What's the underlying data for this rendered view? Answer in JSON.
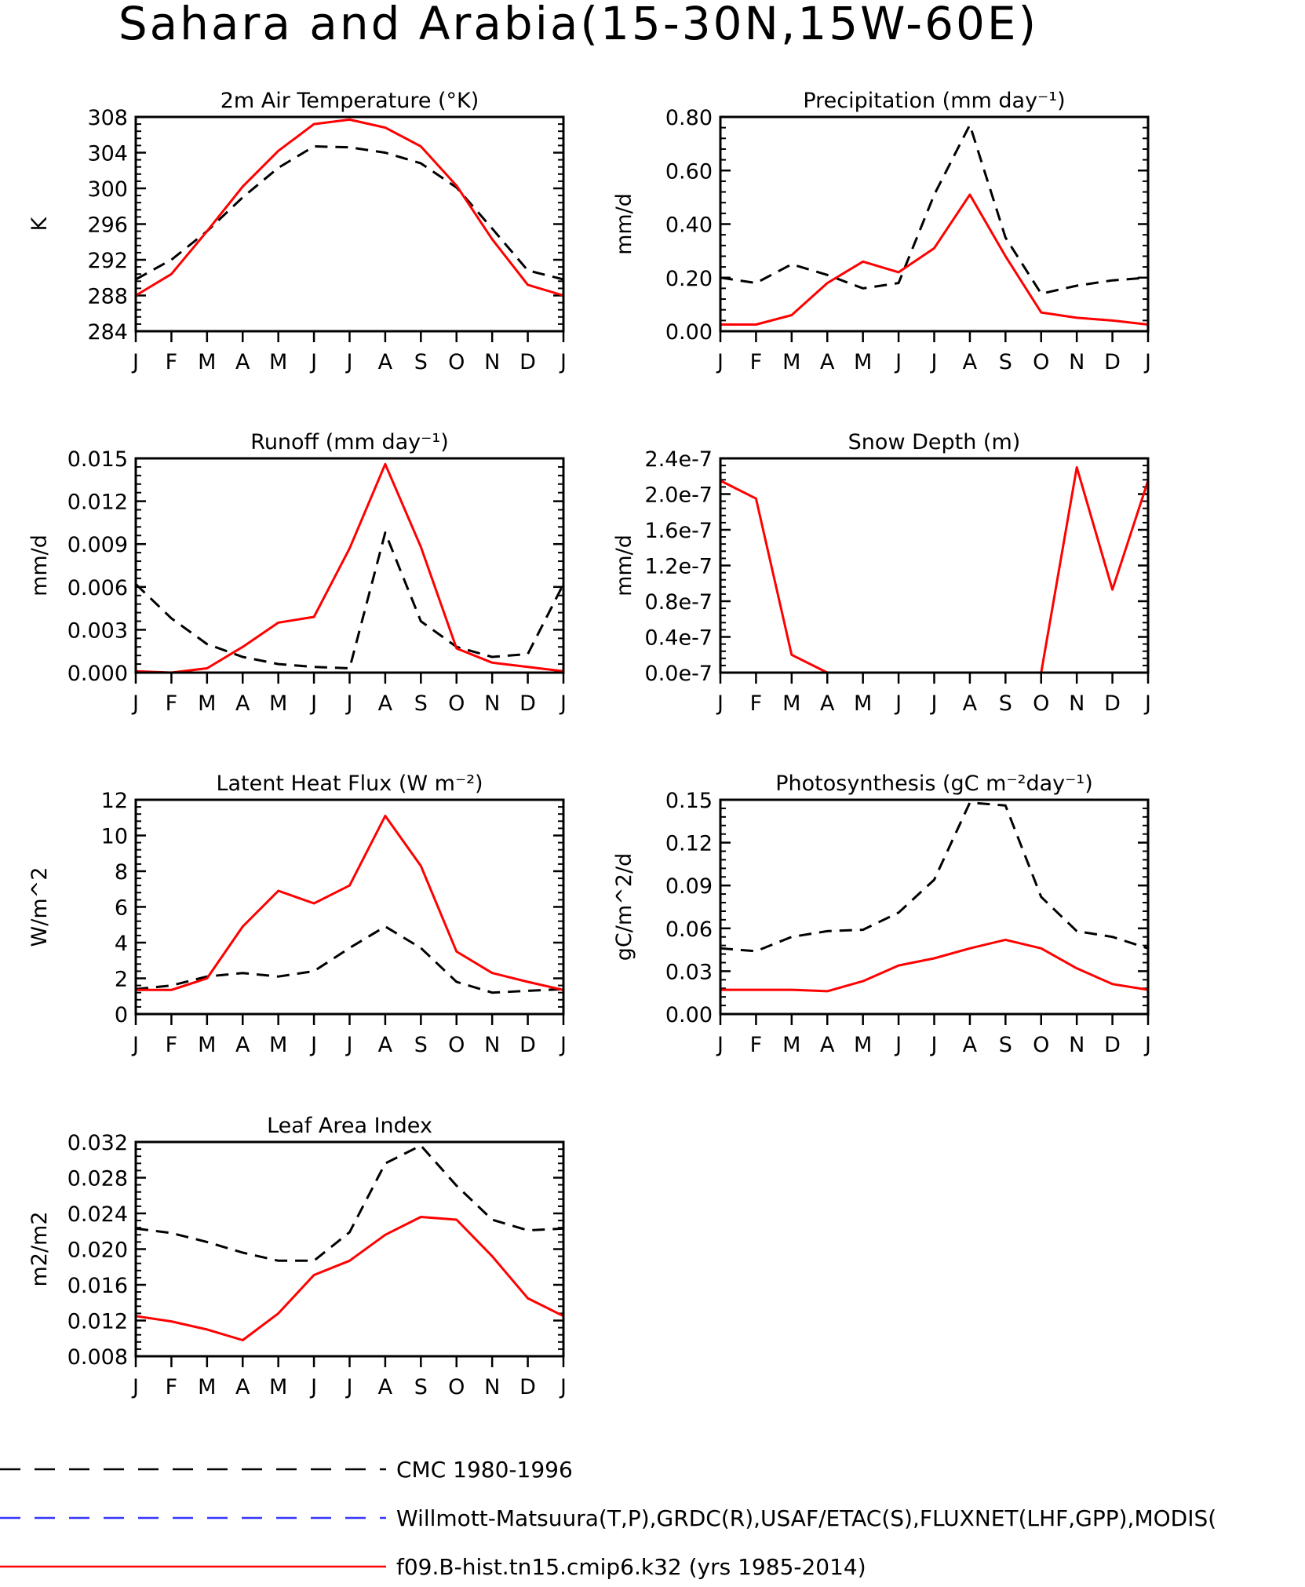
{
  "page": {
    "title": "Sahara and Arabia(15-30N,15W-60E)"
  },
  "colors": {
    "obs": "#000000",
    "obs_blue": "#3535ff",
    "model": "#ff0000"
  },
  "legend": {
    "items": [
      {
        "label": "CMC 1980-1996",
        "style": "dashed",
        "color": "#000000"
      },
      {
        "label": "Willmott-Matsuura(T,P),GRDC(R),USAF/ETAC(S),FLUXNET(LHF,GPP),MODIS(",
        "style": "dashed",
        "color": "#3535ff"
      },
      {
        "label": "f09.B-hist.tn15.cmip6.k32 (yrs 1985-2014)",
        "style": "solid",
        "color": "#ff0000"
      }
    ]
  },
  "chart_data": [
    {
      "type": "line",
      "title": "2m Air Temperature (°K)",
      "ylabel": "K",
      "xlabel": "",
      "x": [
        "J",
        "F",
        "M",
        "A",
        "M",
        "J",
        "J",
        "A",
        "S",
        "O",
        "N",
        "D",
        "J"
      ],
      "ylim": [
        284,
        308
      ],
      "yticks": [
        "284",
        "288",
        "292",
        "296",
        "300",
        "304",
        "308"
      ],
      "series": [
        {
          "style": "dashed",
          "values": [
            289.8,
            292.0,
            295.2,
            299.0,
            302.3,
            304.7,
            304.6,
            304.0,
            302.8,
            300.1,
            295.5,
            290.8,
            289.8
          ]
        },
        {
          "style": "solid",
          "values": [
            288.0,
            290.4,
            295.2,
            300.2,
            304.2,
            307.2,
            307.7,
            306.8,
            304.7,
            300.3,
            294.3,
            289.2,
            288.0
          ]
        }
      ]
    },
    {
      "type": "line",
      "title": "Precipitation (mm day⁻¹)",
      "ylabel": "mm/d",
      "xlabel": "",
      "x": [
        "J",
        "F",
        "M",
        "A",
        "M",
        "J",
        "J",
        "A",
        "S",
        "O",
        "N",
        "D",
        "J"
      ],
      "ylim": [
        0,
        0.8
      ],
      "yticks": [
        "0.00",
        "0.20",
        "0.40",
        "0.60",
        "0.80"
      ],
      "series": [
        {
          "style": "dashed",
          "values": [
            0.2,
            0.18,
            0.25,
            0.21,
            0.16,
            0.18,
            0.51,
            0.77,
            0.35,
            0.14,
            0.17,
            0.19,
            0.2
          ]
        },
        {
          "style": "solid",
          "values": [
            0.025,
            0.025,
            0.06,
            0.18,
            0.26,
            0.22,
            0.31,
            0.51,
            0.28,
            0.07,
            0.05,
            0.04,
            0.025
          ]
        }
      ]
    },
    {
      "type": "line",
      "title": "Runoff (mm day⁻¹)",
      "ylabel": "mm/d",
      "xlabel": "",
      "x": [
        "J",
        "F",
        "M",
        "A",
        "M",
        "J",
        "J",
        "A",
        "S",
        "O",
        "N",
        "D",
        "J"
      ],
      "ylim": [
        0,
        0.015
      ],
      "yticks": [
        "0.000",
        "0.003",
        "0.006",
        "0.009",
        "0.012",
        "0.015"
      ],
      "series": [
        {
          "style": "dashed",
          "values": [
            0.0062,
            0.0038,
            0.002,
            0.0011,
            0.0006,
            0.0004,
            0.0003,
            0.0098,
            0.0036,
            0.0018,
            0.0011,
            0.0013,
            0.0062
          ]
        },
        {
          "style": "solid",
          "values": [
            0.0001,
            0.0,
            0.0003,
            0.0018,
            0.0035,
            0.0039,
            0.0087,
            0.0146,
            0.0088,
            0.0017,
            0.0007,
            0.0004,
            0.0001
          ]
        }
      ]
    },
    {
      "type": "line",
      "title": "Snow Depth (m)",
      "ylabel": "mm/d",
      "xlabel": "",
      "x": [
        "J",
        "F",
        "M",
        "A",
        "M",
        "J",
        "J",
        "A",
        "S",
        "O",
        "N",
        "D",
        "J"
      ],
      "ylim": [
        0,
        2.4e-07
      ],
      "yticks": [
        "0.0e-7",
        "0.4e-7",
        "0.8e-7",
        "1.2e-7",
        "1.6e-7",
        "2.0e-7",
        "2.4e-7"
      ],
      "series": [
        {
          "style": "dashed",
          "values": [
            0,
            0,
            0,
            0,
            0,
            0,
            0,
            0,
            0,
            0,
            0,
            0,
            0
          ]
        },
        {
          "style": "solid",
          "values": [
            2.15e-07,
            1.95e-07,
            2e-08,
            0,
            0,
            0,
            0,
            0,
            0,
            0,
            2.3e-07,
            9.3e-08,
            2.15e-07
          ]
        }
      ]
    },
    {
      "type": "line",
      "title": "Latent Heat Flux (W m⁻²)",
      "ylabel": "W/m^2",
      "xlabel": "",
      "x": [
        "J",
        "F",
        "M",
        "A",
        "M",
        "J",
        "J",
        "A",
        "S",
        "O",
        "N",
        "D",
        "J"
      ],
      "ylim": [
        0,
        12
      ],
      "yticks": [
        "0",
        "2",
        "4",
        "6",
        "8",
        "10",
        "12"
      ],
      "series": [
        {
          "style": "dashed",
          "values": [
            1.4,
            1.6,
            2.1,
            2.3,
            2.1,
            2.4,
            3.7,
            4.9,
            3.7,
            1.8,
            1.2,
            1.3,
            1.4
          ]
        },
        {
          "style": "solid",
          "values": [
            1.35,
            1.35,
            2.0,
            4.9,
            6.9,
            6.2,
            7.2,
            11.1,
            8.3,
            3.5,
            2.3,
            1.8,
            1.35
          ]
        }
      ]
    },
    {
      "type": "line",
      "title": "Photosynthesis (gC m⁻²day⁻¹)",
      "ylabel": "gC/m^2/d",
      "xlabel": "",
      "x": [
        "J",
        "F",
        "M",
        "A",
        "M",
        "J",
        "J",
        "A",
        "S",
        "O",
        "N",
        "D",
        "J"
      ],
      "ylim": [
        0,
        0.15
      ],
      "yticks": [
        "0.00",
        "0.03",
        "0.06",
        "0.09",
        "0.12",
        "0.15"
      ],
      "series": [
        {
          "style": "dashed",
          "values": [
            0.046,
            0.044,
            0.054,
            0.058,
            0.059,
            0.071,
            0.094,
            0.148,
            0.146,
            0.082,
            0.058,
            0.054,
            0.046
          ]
        },
        {
          "style": "solid",
          "values": [
            0.017,
            0.017,
            0.017,
            0.016,
            0.023,
            0.034,
            0.039,
            0.046,
            0.052,
            0.046,
            0.032,
            0.021,
            0.017
          ]
        }
      ]
    },
    {
      "type": "line",
      "title": "Leaf Area Index",
      "ylabel": "m2/m2",
      "xlabel": "",
      "x": [
        "J",
        "F",
        "M",
        "A",
        "M",
        "J",
        "J",
        "A",
        "S",
        "O",
        "N",
        "D",
        "J"
      ],
      "ylim": [
        0.008,
        0.032
      ],
      "yticks": [
        "0.008",
        "0.012",
        "0.016",
        "0.020",
        "0.024",
        "0.028",
        "0.032"
      ],
      "series": [
        {
          "style": "dashed",
          "values": [
            0.0223,
            0.0218,
            0.0208,
            0.0196,
            0.0187,
            0.0187,
            0.0219,
            0.0296,
            0.0316,
            0.0271,
            0.0233,
            0.0221,
            0.0223
          ]
        },
        {
          "style": "solid",
          "values": [
            0.0125,
            0.0119,
            0.011,
            0.0098,
            0.0128,
            0.0171,
            0.0187,
            0.0216,
            0.0236,
            0.0233,
            0.0192,
            0.0145,
            0.0125
          ]
        }
      ]
    }
  ]
}
